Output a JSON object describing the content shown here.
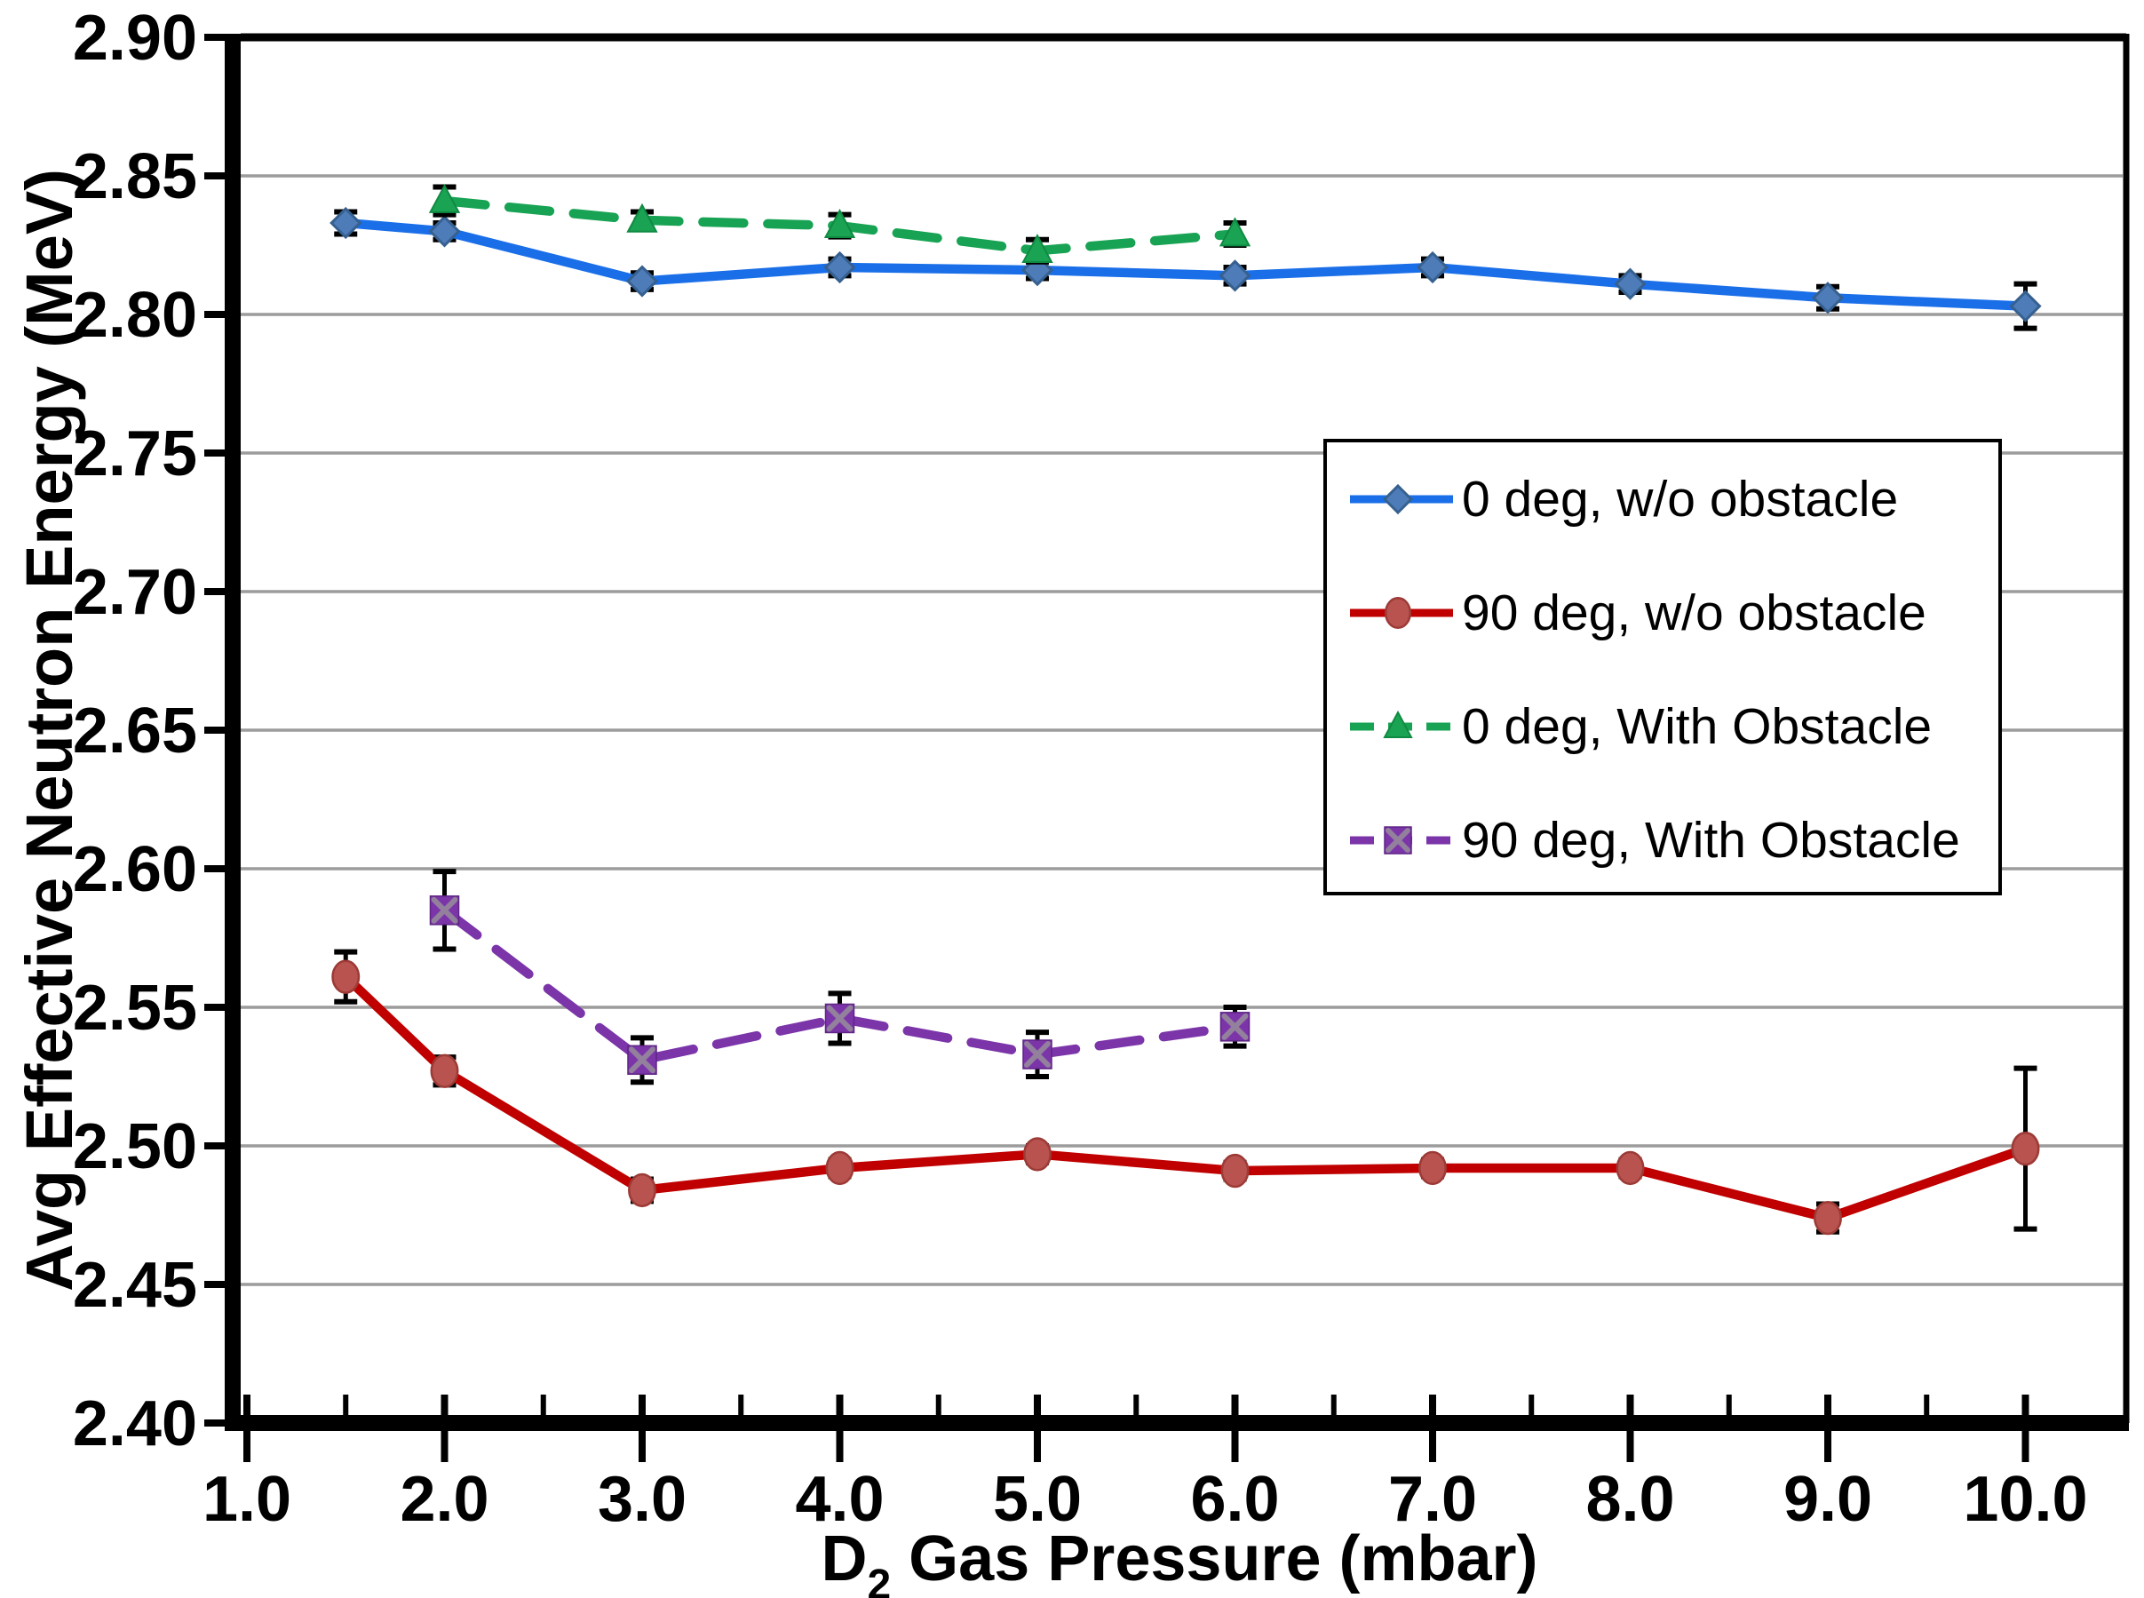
{
  "chart_data": {
    "type": "line",
    "title": "",
    "xlabel": "D2 Gas Pressure (mbar)",
    "xlabel_parts": {
      "prefix": "D",
      "subscript": "2",
      "suffix": " Gas Pressure (mbar)"
    },
    "ylabel": "Avg Effective Neutron Energy (MeV)",
    "xlim": [
      1.0,
      10.0
    ],
    "ylim": [
      2.4,
      2.9
    ],
    "x_tick_values": [
      1.0,
      2.0,
      3.0,
      4.0,
      5.0,
      6.0,
      7.0,
      8.0,
      9.0,
      10.0
    ],
    "x_tick_labels": [
      "1.0",
      "2.0",
      "3.0",
      "4.0",
      "5.0",
      "6.0",
      "7.0",
      "8.0",
      "9.0",
      "10.0"
    ],
    "x_minor_tick_step": 0.5,
    "y_tick_values": [
      2.4,
      2.45,
      2.5,
      2.55,
      2.6,
      2.65,
      2.7,
      2.75,
      2.8,
      2.85,
      2.9
    ],
    "y_tick_labels": [
      "2.40",
      "2.45",
      "2.50",
      "2.55",
      "2.60",
      "2.65",
      "2.70",
      "2.75",
      "2.80",
      "2.85",
      "2.90"
    ],
    "grid": "horizontal",
    "grid_color": "#9C9C9C",
    "axis_color": "#000000",
    "error_bar_color": "#000000",
    "legend": {
      "position": "upper-right-inside",
      "border_color": "#000000",
      "bg": "#FFFFFF"
    },
    "series": [
      {
        "name": "0 deg, w/o obstacle",
        "marker": "diamond",
        "line_style": "solid",
        "line_color": "#1A6FE8",
        "marker_fill": "#4E7CB8",
        "marker_stroke": "#36608F",
        "x": [
          1.5,
          2.0,
          3.0,
          4.0,
          5.0,
          6.0,
          7.0,
          8.0,
          9.0,
          10.0
        ],
        "y": [
          2.833,
          2.83,
          2.812,
          2.817,
          2.816,
          2.814,
          2.817,
          2.811,
          2.806,
          2.803
        ],
        "yerr": [
          0.004,
          0.003,
          0.003,
          0.003,
          0.003,
          0.003,
          0.003,
          0.003,
          0.004,
          0.008
        ]
      },
      {
        "name": "90 deg, w/o obstacle",
        "marker": "circle",
        "line_style": "solid",
        "line_color": "#C00000",
        "marker_fill": "#B8534F",
        "marker_stroke": "#9C3A36",
        "x": [
          1.5,
          2.0,
          3.0,
          4.0,
          5.0,
          6.0,
          7.0,
          8.0,
          9.0,
          10.0
        ],
        "y": [
          2.561,
          2.527,
          2.484,
          2.492,
          2.497,
          2.491,
          2.492,
          2.492,
          2.474,
          2.499
        ],
        "yerr": [
          0.009,
          0.005,
          0.004,
          0.003,
          0.003,
          0.003,
          0.003,
          0.003,
          0.005,
          0.029
        ]
      },
      {
        "name": "0 deg, With Obstacle",
        "marker": "triangle",
        "line_style": "dashed",
        "line_color": "#17A353",
        "marker_fill": "#1AA353",
        "marker_stroke": "#0F8A42",
        "x": [
          2.0,
          3.0,
          4.0,
          5.0,
          6.0
        ],
        "y": [
          2.841,
          2.834,
          2.832,
          2.823,
          2.829
        ],
        "yerr": [
          0.005,
          0.003,
          0.004,
          0.004,
          0.004
        ]
      },
      {
        "name": "90 deg, With Obstacle",
        "marker": "square-x",
        "line_style": "dashed",
        "line_color": "#7B35A9",
        "marker_fill": "#7B35A9",
        "marker_stroke": "#5E2585",
        "marker_x_color": "#92809C",
        "x": [
          2.0,
          3.0,
          4.0,
          5.0,
          6.0
        ],
        "y": [
          2.585,
          2.531,
          2.546,
          2.533,
          2.543
        ],
        "yerr": [
          0.014,
          0.008,
          0.009,
          0.008,
          0.007
        ]
      }
    ]
  }
}
